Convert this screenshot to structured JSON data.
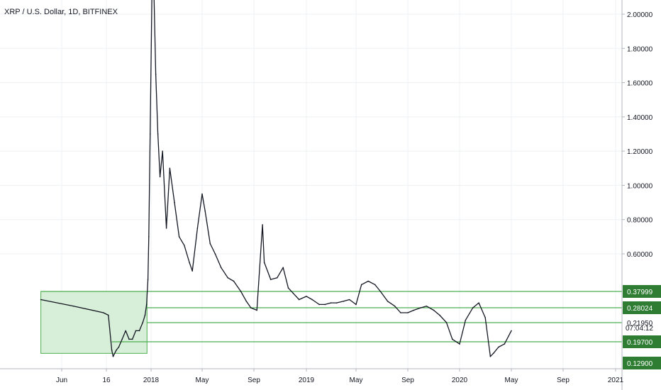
{
  "chart_data": {
    "type": "line",
    "title": "XRP / U.S. Dollar, 1D, BITFINEX",
    "xlabel": "",
    "ylabel": "",
    "x_ticks": [
      "Jun",
      "16",
      "2018",
      "May",
      "Sep",
      "2019",
      "May",
      "Sep",
      "2020",
      "May",
      "Sep",
      "2021"
    ],
    "y_ticks": [
      "2.00000",
      "1.80000",
      "1.60000",
      "1.40000",
      "1.20000",
      "1.00000",
      "0.80000",
      "0.60000"
    ],
    "ylim": [
      0.1,
      2.1
    ],
    "grid": true,
    "series": [
      {
        "name": "",
        "x": [
          "2017-05-25",
          "2017-06-05",
          "2017-06-15",
          "2017-06-25",
          "2017-07-10",
          "2017-07-16",
          "2017-07-30",
          "2017-08-10",
          "2017-08-25",
          "2017-09-10",
          "2017-09-25",
          "2017-10-10",
          "2017-10-25",
          "2017-11-10",
          "2017-11-25",
          "2017-12-05",
          "2017-12-12",
          "2017-12-18",
          "2017-12-22",
          "2017-12-28",
          "2018-01-04",
          "2018-01-08",
          "2018-01-12",
          "2018-01-17",
          "2018-01-22",
          "2018-01-28",
          "2018-02-06",
          "2018-02-14",
          "2018-02-25",
          "2018-03-08",
          "2018-03-20",
          "2018-04-01",
          "2018-04-08",
          "2018-04-20",
          "2018-05-01",
          "2018-05-08",
          "2018-05-20",
          "2018-06-01",
          "2018-06-15",
          "2018-07-01",
          "2018-07-15",
          "2018-08-01",
          "2018-08-14",
          "2018-08-25",
          "2018-09-08",
          "2018-09-21",
          "2018-09-25",
          "2018-10-10",
          "2018-10-25",
          "2018-11-08",
          "2018-11-20",
          "2018-12-01",
          "2018-12-15",
          "2019-01-01",
          "2019-01-15",
          "2019-02-01",
          "2019-02-15",
          "2019-03-01",
          "2019-03-15",
          "2019-04-01",
          "2019-04-15",
          "2019-05-01",
          "2019-05-14",
          "2019-05-30",
          "2019-06-15",
          "2019-06-28",
          "2019-07-15",
          "2019-08-01",
          "2019-08-15",
          "2019-09-01",
          "2019-09-15",
          "2019-10-01",
          "2019-10-15",
          "2019-11-01",
          "2019-11-15",
          "2019-12-01",
          "2019-12-15",
          "2020-01-01",
          "2020-01-15",
          "2020-02-01",
          "2020-02-15",
          "2020-03-01",
          "2020-03-13",
          "2020-03-20",
          "2020-04-01",
          "2020-04-15",
          "2020-05-01"
        ],
        "values": [
          0.33,
          0.29,
          0.26,
          0.25,
          0.17,
          0.15,
          0.17,
          0.18,
          0.2,
          0.21,
          0.2,
          0.2,
          0.21,
          0.21,
          0.22,
          0.25,
          0.3,
          0.45,
          0.7,
          1.3,
          2.3,
          2.1,
          1.65,
          1.3,
          1.05,
          1.2,
          0.75,
          1.1,
          0.9,
          0.7,
          0.65,
          0.55,
          0.5,
          0.75,
          0.95,
          0.85,
          0.66,
          0.6,
          0.52,
          0.46,
          0.44,
          0.38,
          0.32,
          0.28,
          0.27,
          0.77,
          0.55,
          0.45,
          0.46,
          0.52,
          0.4,
          0.37,
          0.33,
          0.35,
          0.33,
          0.3,
          0.3,
          0.31,
          0.31,
          0.32,
          0.33,
          0.3,
          0.42,
          0.44,
          0.42,
          0.38,
          0.32,
          0.29,
          0.26,
          0.26,
          0.27,
          0.28,
          0.29,
          0.27,
          0.25,
          0.22,
          0.2,
          0.19,
          0.23,
          0.28,
          0.31,
          0.24,
          0.15,
          0.16,
          0.18,
          0.19,
          0.21
        ]
      }
    ],
    "levels": [
      {
        "value": 0.37999,
        "label": "0.37999"
      },
      {
        "value": 0.28024,
        "label": "0.28024"
      },
      {
        "value": 0.2195,
        "label": "0.21950"
      },
      {
        "value": 0.197,
        "label": "0.19700"
      },
      {
        "value": 0.129,
        "label": "0.12900"
      }
    ],
    "range_box": {
      "x_start": "2017-05-25",
      "x_end": "2017-12-14",
      "top": 0.37999,
      "bottom": 0.16
    },
    "countdown": "07:04:12",
    "colors": {
      "price": "#131722",
      "level": "#4caf50",
      "badge": "#2e7d32",
      "box_fill": "#d7eed8",
      "grid": "#eef0f3"
    }
  }
}
